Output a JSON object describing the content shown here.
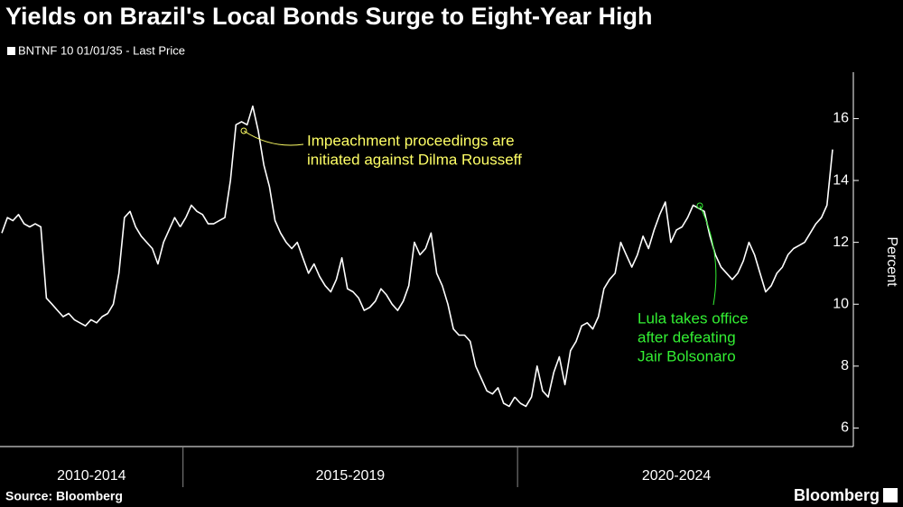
{
  "chart_data": {
    "type": "line",
    "title": "Yields on Brazil's Local Bonds Surge to Eight-Year High",
    "series_name": "BNTNF 10 01/01/35 - Last Price",
    "color": "#ffffff",
    "ylabel": "Percent",
    "ylim": [
      5.4,
      17.5
    ],
    "yticks": [
      6,
      8,
      10,
      12,
      14,
      16
    ],
    "groups": [
      {
        "label": "2010-2014",
        "values": [
          12.3,
          12.8,
          12.7,
          12.9,
          12.6,
          12.5,
          12.6,
          12.5,
          10.2,
          10.0,
          9.8,
          9.6,
          9.7,
          9.5,
          9.4,
          9.3,
          9.5,
          9.4,
          9.6,
          9.7,
          10.0,
          11.0,
          12.8,
          13.0,
          12.5,
          12.2,
          12.0,
          11.8,
          11.3,
          12.0,
          12.4,
          12.8,
          12.5
        ]
      },
      {
        "label": "2015-2019",
        "values": [
          12.8,
          13.2,
          13.0,
          12.9,
          12.6,
          12.6,
          12.7,
          12.8,
          14.0,
          15.8,
          15.9,
          15.8,
          16.4,
          15.6,
          14.5,
          13.8,
          12.7,
          12.3,
          12.0,
          11.8,
          12.0,
          11.5,
          11.0,
          11.3,
          10.9,
          10.6,
          10.4,
          10.8,
          11.5,
          10.5,
          10.4,
          10.2,
          9.8,
          9.9,
          10.1,
          10.5,
          10.3,
          10.0,
          9.8,
          10.1,
          10.6,
          12.0,
          11.6,
          11.8,
          12.3,
          11.0,
          10.6,
          10.0,
          9.2,
          9.0,
          9.0,
          8.8,
          8.0,
          7.6,
          7.2,
          7.1,
          7.3,
          6.8,
          6.7,
          7.0
        ]
      },
      {
        "label": "2020-2024",
        "values": [
          6.8,
          6.7,
          7.0,
          8.0,
          7.2,
          7.0,
          7.8,
          8.3,
          7.4,
          8.5,
          8.8,
          9.3,
          9.4,
          9.2,
          9.6,
          10.5,
          10.8,
          11.0,
          12.0,
          11.6,
          11.2,
          11.6,
          12.2,
          11.8,
          12.4,
          12.9,
          13.3,
          12.0,
          12.4,
          12.5,
          12.8,
          13.2,
          13.1,
          13.0,
          12.2,
          11.6,
          11.2,
          11.0,
          10.8,
          11.0,
          11.4,
          12.0,
          11.6,
          11.0,
          10.4,
          10.6,
          11.0,
          11.2,
          11.6,
          11.8,
          11.9,
          12.0,
          12.3,
          12.6,
          12.8,
          13.2,
          15.0
        ]
      }
    ],
    "annotations": [
      {
        "lines": [
          "Impeachment proceedings are",
          "initiated against Dilma Rousseff"
        ],
        "color": "#ffff66"
      },
      {
        "lines": [
          "Lula takes office",
          "after defeating",
          "Jair Bolsonaro"
        ],
        "color": "#33ee33"
      }
    ],
    "source": "Source: Bloomberg",
    "brand": "Bloomberg"
  }
}
